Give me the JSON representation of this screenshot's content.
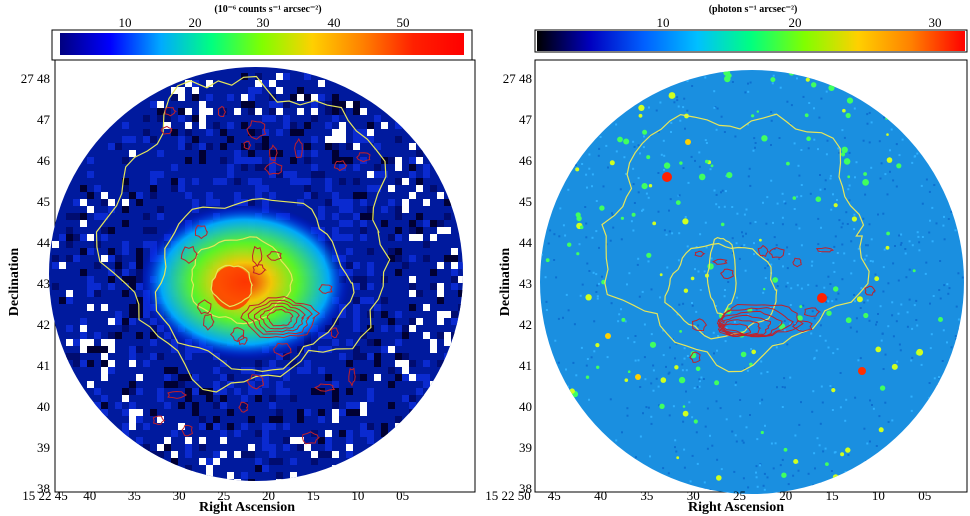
{
  "figure": {
    "panels": [
      {
        "id": "left",
        "colorbar_title": "(10⁻⁶ counts s⁻¹ arcsec⁻²)",
        "colorbar_ticks": [
          "10",
          "20",
          "30",
          "40",
          "50"
        ],
        "colorbar_range": [
          0,
          60
        ],
        "colormap": [
          "#000080",
          "#0000ff",
          "#00aaff",
          "#00ff80",
          "#80ff00",
          "#ffd000",
          "#ff8000",
          "#ff2000",
          "#ff0000"
        ],
        "xlabel": "Right Ascension",
        "ylabel": "Declination",
        "xticks": [
          "15 22 45",
          "40",
          "35",
          "30",
          "25",
          "20",
          "15",
          "10",
          "05"
        ],
        "yticks": [
          "27 48",
          "47",
          "46",
          "45",
          "44",
          "43",
          "42",
          "41",
          "40",
          "39",
          "38"
        ]
      },
      {
        "id": "right",
        "colorbar_title": "(photon s⁻¹ arcsec⁻²)",
        "colorbar_ticks": [
          "10",
          "20",
          "30"
        ],
        "colorbar_range": [
          0,
          32
        ],
        "colormap": [
          "#000000",
          "#0000c0",
          "#0060ff",
          "#00c0ff",
          "#00ff80",
          "#80ff00",
          "#ffd000",
          "#ff8000",
          "#ff0000"
        ],
        "xlabel": "Right Ascension",
        "ylabel": "Declination",
        "xticks": [
          "15 22 50",
          "45",
          "40",
          "35",
          "30",
          "25",
          "20",
          "15",
          "10",
          "05"
        ],
        "yticks": [
          "27 48",
          "47",
          "46",
          "45",
          "44",
          "43",
          "42",
          "41",
          "40",
          "39",
          "38"
        ]
      }
    ],
    "colors": {
      "contour_xray": "#e6e65a",
      "contour_radio": "#c0202a"
    }
  },
  "chart_data": [
    {
      "type": "heatmap",
      "title": "(10⁻⁶ counts s⁻¹ arcsec⁻²)",
      "xlabel": "Right Ascension",
      "ylabel": "Declination",
      "x_tick_labels": [
        "15 22 45",
        "40",
        "35",
        "30",
        "25",
        "20",
        "15",
        "10",
        "05"
      ],
      "y_tick_labels": [
        "27 48",
        "47",
        "46",
        "45",
        "44",
        "43",
        "42",
        "41",
        "40",
        "39",
        "38"
      ],
      "colorbar_ticks": [
        10,
        20,
        30,
        40,
        50
      ],
      "grid": false
    },
    {
      "type": "heatmap",
      "title": "(photon s⁻¹ arcsec⁻²)",
      "xlabel": "Right Ascension",
      "ylabel": "Declination",
      "x_tick_labels": [
        "15 22 50",
        "45",
        "40",
        "35",
        "30",
        "25",
        "20",
        "15",
        "10",
        "05"
      ],
      "y_tick_labels": [
        "27 48",
        "47",
        "46",
        "45",
        "44",
        "43",
        "42",
        "41",
        "40",
        "39",
        "38"
      ],
      "colorbar_ticks": [
        10,
        20,
        30
      ],
      "grid": false
    }
  ]
}
